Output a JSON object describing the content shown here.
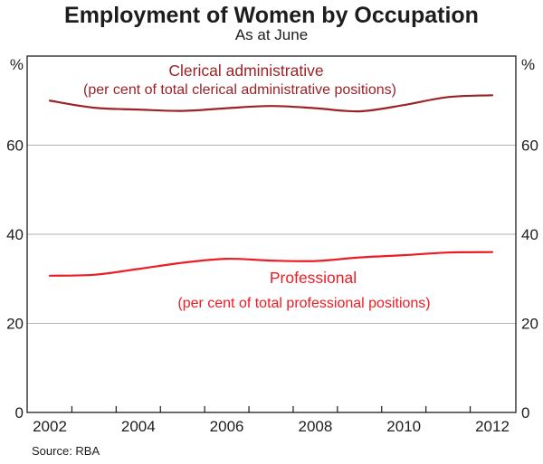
{
  "header": {
    "title": "Employment of Women by Occupation",
    "subtitle": "As at June"
  },
  "source": "Source: RBA",
  "colors": {
    "clerical_line": "#9b2226",
    "professional_line": "#ed1c24",
    "gridline": "#b3b3b3",
    "frame": "#1d1d1f"
  },
  "chart_data": {
    "type": "line",
    "title": "Employment of Women by Occupation",
    "subtitle": "As at June",
    "x": [
      2002,
      2003,
      2004,
      2005,
      2006,
      2007,
      2008,
      2009,
      2010,
      2011,
      2012
    ],
    "x_tick_labels": [
      "2002",
      "2004",
      "2006",
      "2008",
      "2010",
      "2012"
    ],
    "ylim": [
      0,
      80
    ],
    "yticks": [
      0,
      20,
      40,
      60
    ],
    "y_unit": "%",
    "grid": "horizontal",
    "legend_position": "inline-annotations",
    "series": [
      {
        "name": "Clerical administrative",
        "label": "Clerical administrative",
        "sublabel": "(per cent of total clerical administrative positions)",
        "color": "#9b2226",
        "values": [
          70.0,
          68.4,
          68.0,
          67.7,
          68.3,
          68.8,
          68.3,
          67.6,
          69.0,
          70.8,
          71.2
        ]
      },
      {
        "name": "Professional",
        "label": "Professional",
        "sublabel": "(per cent of total professional positions)",
        "color": "#ed1c24",
        "values": [
          30.7,
          30.9,
          32.2,
          33.6,
          34.5,
          34.1,
          34.0,
          34.8,
          35.3,
          35.9,
          36.0
        ]
      }
    ]
  }
}
